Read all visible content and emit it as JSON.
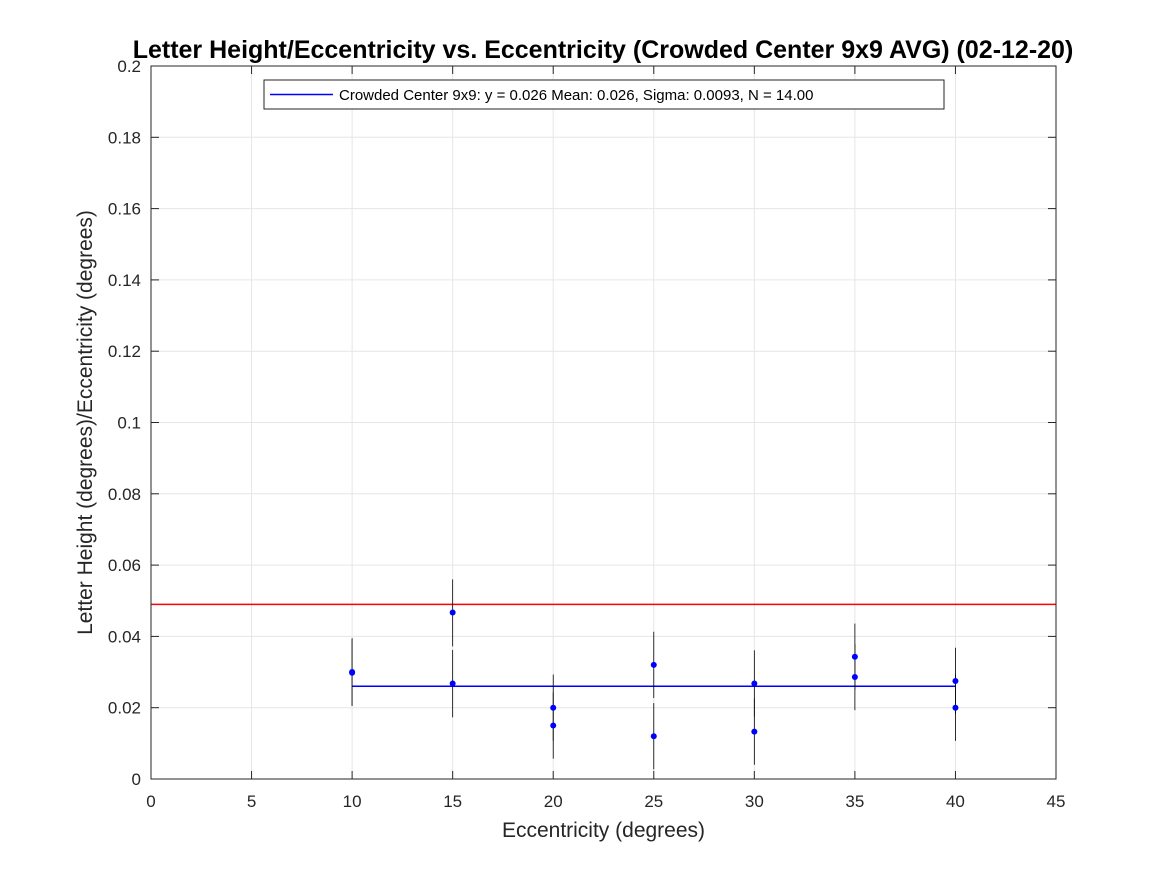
{
  "chart_data": {
    "type": "scatter",
    "title": "Letter Height/Eccentricity vs. Eccentricity (Crowded Center 9x9 AVG) (02-12-20)",
    "xlabel": "Eccentricity (degrees)",
    "ylabel": "Letter Height (degrees)/Eccentricity (degrees)",
    "xlim": [
      0,
      45
    ],
    "ylim": [
      0,
      0.2
    ],
    "xticks": [
      "0",
      "5",
      "10",
      "15",
      "20",
      "25",
      "30",
      "35",
      "40",
      "45"
    ],
    "yticks": [
      "0",
      "0.02",
      "0.04",
      "0.06",
      "0.08",
      "0.1",
      "0.12",
      "0.14",
      "0.16",
      "0.18",
      "0.2"
    ],
    "grid": true,
    "legend_position": "top",
    "points": [
      {
        "x": 10,
        "y": 0.0298,
        "lo": 0.0205,
        "hi": 0.0392
      },
      {
        "x": 10,
        "y": 0.03,
        "lo": 0.0205,
        "hi": 0.0395
      },
      {
        "x": 15,
        "y": 0.0467,
        "lo": 0.0372,
        "hi": 0.056
      },
      {
        "x": 15,
        "y": 0.0268,
        "lo": 0.0173,
        "hi": 0.0362
      },
      {
        "x": 20,
        "y": 0.02,
        "lo": 0.0107,
        "hi": 0.0293
      },
      {
        "x": 20,
        "y": 0.015,
        "lo": 0.0057,
        "hi": 0.0243
      },
      {
        "x": 25,
        "y": 0.032,
        "lo": 0.0227,
        "hi": 0.0413
      },
      {
        "x": 25,
        "y": 0.012,
        "lo": 0.0027,
        "hi": 0.0213
      },
      {
        "x": 30,
        "y": 0.0268,
        "lo": 0.0175,
        "hi": 0.0361
      },
      {
        "x": 30,
        "y": 0.0133,
        "lo": 0.004,
        "hi": 0.0226
      },
      {
        "x": 35,
        "y": 0.0343,
        "lo": 0.025,
        "hi": 0.0436
      },
      {
        "x": 35,
        "y": 0.0286,
        "lo": 0.0193,
        "hi": 0.0379
      },
      {
        "x": 40,
        "y": 0.0275,
        "lo": 0.0182,
        "hi": 0.0368
      },
      {
        "x": 40,
        "y": 0.02,
        "lo": 0.0107,
        "hi": 0.0293
      }
    ],
    "series": [
      {
        "name": "Crowded Center 9x9: y = 0.026 Mean: 0.026, Sigma: 0.0093, N = 14.00",
        "x": [
          10,
          40
        ],
        "y": [
          0.026,
          0.026
        ],
        "color": "#0000ff"
      }
    ],
    "reference_line": {
      "y": 0.049,
      "color": "#ff0000"
    },
    "colors": {
      "points": "#0000ff",
      "errorbars": "#000000",
      "grid": "#e6e6e6",
      "axes": "#262626"
    }
  }
}
